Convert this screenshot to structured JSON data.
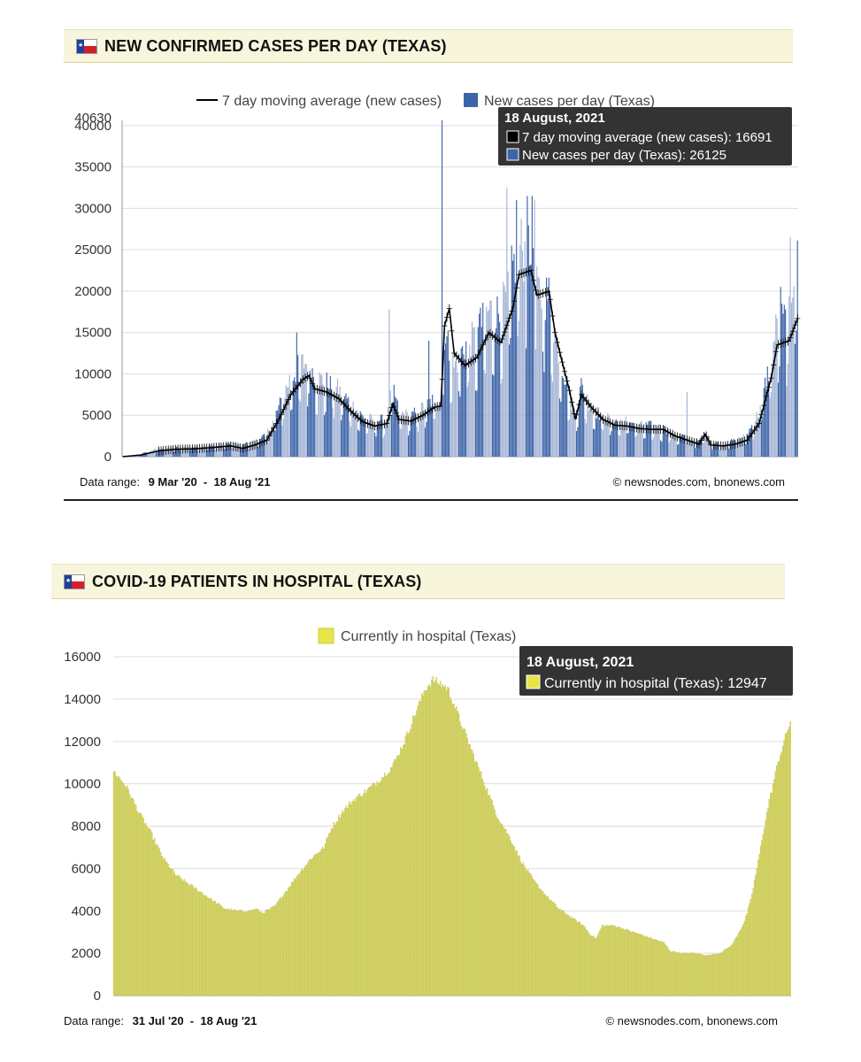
{
  "cases_panel": {
    "title": "NEW CONFIRMED CASES PER DAY (TEXAS)",
    "data_range_label": "Data range:",
    "data_range_value": "9 Mar '20  -  18 Aug '21",
    "credit": "© newsnodes.com, bnonews.com",
    "flag_icon": "texas-flag-icon"
  },
  "hosp_panel": {
    "title": "COVID-19 PATIENTS IN HOSPITAL (TEXAS)",
    "data_range_label": "Data range:",
    "data_range_value": "31 Jul '20  -  18 Aug '21",
    "credit": "© newsnodes.com, bnonews.com",
    "flag_icon": "texas-flag-icon"
  },
  "colors": {
    "bar_dark": "#3d64a8",
    "bar_light": "#a5b5d6",
    "avg_line": "#000000",
    "hosp_bar": "#d9d96a",
    "hosp_edge": "#b9b93a",
    "grid": "#dddddd",
    "tooltip_bg": "#333333"
  },
  "chart_data": [
    {
      "type": "bar",
      "title": "NEW CONFIRMED CASES PER DAY (TEXAS)",
      "legend_position": "top",
      "legend": [
        "7 day moving average (new cases)",
        "New cases per day (Texas)"
      ],
      "yticks": [
        0,
        5000,
        10000,
        15000,
        20000,
        25000,
        30000,
        35000,
        40000
      ],
      "ymax_label": "40630",
      "ylim": [
        0,
        40630
      ],
      "x_start": "9 Mar '20",
      "x_end": "18 Aug '21",
      "grid": true,
      "moving_average_anchors": [
        [
          0,
          0
        ],
        [
          15,
          200
        ],
        [
          30,
          700
        ],
        [
          45,
          900
        ],
        [
          60,
          950
        ],
        [
          75,
          1100
        ],
        [
          90,
          1300
        ],
        [
          100,
          1000
        ],
        [
          110,
          1400
        ],
        [
          120,
          2000
        ],
        [
          130,
          4500
        ],
        [
          140,
          7500
        ],
        [
          150,
          9300
        ],
        [
          155,
          9800
        ],
        [
          160,
          8200
        ],
        [
          170,
          7800
        ],
        [
          180,
          7000
        ],
        [
          190,
          5500
        ],
        [
          200,
          4200
        ],
        [
          210,
          3700
        ],
        [
          220,
          4000
        ],
        [
          225,
          6400
        ],
        [
          230,
          4500
        ],
        [
          240,
          4300
        ],
        [
          250,
          5000
        ],
        [
          260,
          6000
        ],
        [
          265,
          6100
        ],
        [
          268,
          15800
        ],
        [
          272,
          17900
        ],
        [
          276,
          12500
        ],
        [
          285,
          11000
        ],
        [
          295,
          12000
        ],
        [
          305,
          15000
        ],
        [
          315,
          13800
        ],
        [
          325,
          18000
        ],
        [
          330,
          22000
        ],
        [
          340,
          22500
        ],
        [
          345,
          19500
        ],
        [
          355,
          20000
        ],
        [
          360,
          15000
        ],
        [
          365,
          12000
        ],
        [
          372,
          8000
        ],
        [
          377,
          4500
        ],
        [
          382,
          7500
        ],
        [
          390,
          6000
        ],
        [
          400,
          4500
        ],
        [
          410,
          3800
        ],
        [
          420,
          3700
        ],
        [
          430,
          3400
        ],
        [
          440,
          3300
        ],
        [
          450,
          3300
        ],
        [
          460,
          2500
        ],
        [
          470,
          2000
        ],
        [
          480,
          1500
        ],
        [
          485,
          2700
        ],
        [
          490,
          1400
        ],
        [
          500,
          1300
        ],
        [
          510,
          1500
        ],
        [
          520,
          2000
        ],
        [
          530,
          4000
        ],
        [
          540,
          9500
        ],
        [
          545,
          13500
        ],
        [
          555,
          14000
        ],
        [
          562,
          16691
        ]
      ],
      "new_cases_anchors": [
        [
          0,
          0
        ],
        [
          15,
          300
        ],
        [
          30,
          900
        ],
        [
          45,
          1000
        ],
        [
          60,
          1200
        ],
        [
          75,
          1200
        ],
        [
          90,
          1500
        ],
        [
          100,
          1300
        ],
        [
          110,
          1700
        ],
        [
          120,
          2500
        ],
        [
          130,
          5500
        ],
        [
          140,
          9000
        ],
        [
          150,
          10500
        ],
        [
          155,
          10500
        ],
        [
          160,
          9000
        ],
        [
          170,
          8300
        ],
        [
          180,
          7500
        ],
        [
          190,
          6000
        ],
        [
          200,
          4500
        ],
        [
          210,
          4000
        ],
        [
          220,
          4200
        ],
        [
          225,
          8000
        ],
        [
          230,
          5000
        ],
        [
          240,
          4500
        ],
        [
          250,
          5500
        ],
        [
          260,
          6500
        ],
        [
          265,
          6500
        ],
        [
          268,
          14000
        ],
        [
          272,
          12000
        ],
        [
          276,
          10000
        ],
        [
          285,
          12500
        ],
        [
          295,
          13500
        ],
        [
          305,
          16500
        ],
        [
          315,
          16000
        ],
        [
          325,
          21000
        ],
        [
          330,
          24000
        ],
        [
          340,
          22000
        ],
        [
          345,
          18500
        ],
        [
          355,
          18000
        ],
        [
          360,
          14000
        ],
        [
          365,
          11000
        ],
        [
          372,
          7000
        ],
        [
          377,
          5000
        ],
        [
          382,
          8000
        ],
        [
          390,
          5500
        ],
        [
          400,
          4500
        ],
        [
          410,
          4000
        ],
        [
          420,
          4000
        ],
        [
          430,
          3500
        ],
        [
          440,
          3500
        ],
        [
          450,
          3200
        ],
        [
          460,
          2500
        ],
        [
          470,
          2200
        ],
        [
          480,
          1700
        ],
        [
          485,
          2800
        ],
        [
          490,
          1500
        ],
        [
          500,
          1500
        ],
        [
          510,
          1800
        ],
        [
          520,
          2500
        ],
        [
          530,
          5000
        ],
        [
          540,
          11000
        ],
        [
          545,
          15000
        ],
        [
          555,
          15500
        ],
        [
          562,
          26125
        ]
      ],
      "spikes": [
        [
          145,
          15000
        ],
        [
          222,
          17800
        ],
        [
          255,
          14000
        ],
        [
          266,
          40630
        ],
        [
          298,
          18000
        ],
        [
          320,
          32500
        ],
        [
          328,
          31000
        ],
        [
          335,
          26000
        ],
        [
          337,
          31500
        ],
        [
          341,
          31500
        ],
        [
          343,
          31000
        ],
        [
          470,
          7800
        ],
        [
          548,
          20500
        ],
        [
          556,
          26500
        ]
      ],
      "tooltip": {
        "date": "18 August, 2021",
        "rows": [
          {
            "label": "7 day moving average (new cases)",
            "value": 16691
          },
          {
            "label": "New cases per day (Texas)",
            "value": 26125
          }
        ]
      }
    },
    {
      "type": "bar",
      "title": "COVID-19 PATIENTS IN HOSPITAL (TEXAS)",
      "legend_position": "top",
      "legend": [
        "Currently in hospital (Texas)"
      ],
      "yticks": [
        0,
        2000,
        4000,
        6000,
        8000,
        10000,
        12000,
        14000,
        16000
      ],
      "ylim": [
        0,
        16000
      ],
      "x_start": "31 Jul '20",
      "x_end": "18 Aug '21",
      "grid": true,
      "hospital_anchors": [
        [
          0,
          10600
        ],
        [
          10,
          9900
        ],
        [
          20,
          8700
        ],
        [
          30,
          7700
        ],
        [
          40,
          6500
        ],
        [
          50,
          5700
        ],
        [
          60,
          5300
        ],
        [
          70,
          4900
        ],
        [
          80,
          4500
        ],
        [
          90,
          4100
        ],
        [
          100,
          4000
        ],
        [
          110,
          4000
        ],
        [
          115,
          4100
        ],
        [
          120,
          3900
        ],
        [
          130,
          4200
        ],
        [
          140,
          5000
        ],
        [
          150,
          5800
        ],
        [
          160,
          6500
        ],
        [
          170,
          7000
        ],
        [
          175,
          7800
        ],
        [
          185,
          8700
        ],
        [
          195,
          9300
        ],
        [
          205,
          9700
        ],
        [
          215,
          10200
        ],
        [
          225,
          10800
        ],
        [
          235,
          12000
        ],
        [
          245,
          13500
        ],
        [
          252,
          14500
        ],
        [
          258,
          14900
        ],
        [
          265,
          14700
        ],
        [
          270,
          14500
        ],
        [
          275,
          13800
        ],
        [
          280,
          13000
        ],
        [
          290,
          11500
        ],
        [
          300,
          10000
        ],
        [
          310,
          8500
        ],
        [
          320,
          7500
        ],
        [
          330,
          6300
        ],
        [
          340,
          5400
        ],
        [
          350,
          4700
        ],
        [
          360,
          4100
        ],
        [
          370,
          3700
        ],
        [
          380,
          3300
        ],
        [
          385,
          2900
        ],
        [
          390,
          2700
        ],
        [
          395,
          3300
        ],
        [
          405,
          3300
        ],
        [
          415,
          3100
        ],
        [
          425,
          2900
        ],
        [
          435,
          2700
        ],
        [
          445,
          2500
        ],
        [
          450,
          2100
        ],
        [
          460,
          2000
        ],
        [
          470,
          2000
        ],
        [
          480,
          1900
        ],
        [
          490,
          2000
        ],
        [
          500,
          2400
        ],
        [
          510,
          3500
        ],
        [
          515,
          4500
        ],
        [
          520,
          6000
        ],
        [
          525,
          7700
        ],
        [
          530,
          9200
        ],
        [
          537,
          11000
        ],
        [
          542,
          12000
        ],
        [
          547,
          12947
        ]
      ],
      "tooltip": {
        "date": "18 August, 2021",
        "rows": [
          {
            "label": "Currently in hospital (Texas)",
            "value": 12947
          }
        ]
      }
    }
  ]
}
